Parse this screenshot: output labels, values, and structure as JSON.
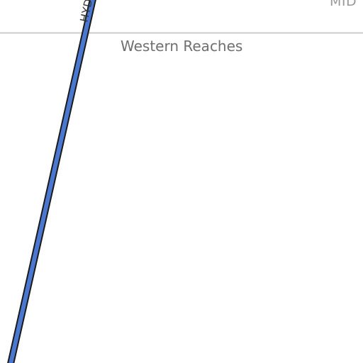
{
  "map": {
    "area_label": "Western Reaches",
    "region_label_partial": "MID",
    "road": {
      "label_partial": "HYD",
      "color": "#4a78d0",
      "casing_color": "#1a1a1a"
    },
    "boundary_color": "#cccccc",
    "background_color": "#ffffff"
  }
}
